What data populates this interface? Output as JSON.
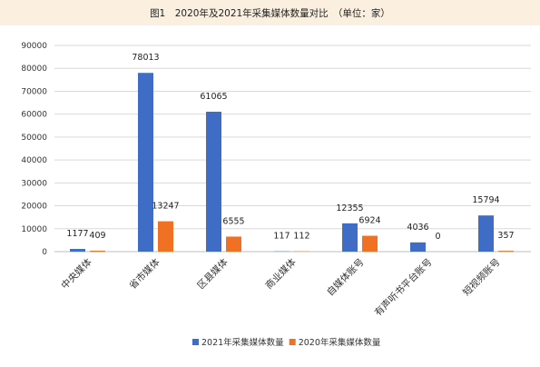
{
  "title": "图1　2020年及2021年采集媒体数量对比　（单位：家）",
  "colors": {
    "series2021": "#3f6cc4",
    "series2020": "#f07024",
    "grid": "#d9d9d9",
    "axis": "#bfbfbf"
  },
  "chart_data": {
    "type": "bar",
    "title": "图1　2020年及2021年采集媒体数量对比　（单位：家）",
    "xlabel": "",
    "ylabel": "",
    "ylim": [
      0,
      90000
    ],
    "yticks": [
      "0",
      "10000",
      "20000",
      "30000",
      "40000",
      "50000",
      "60000",
      "70000",
      "80000",
      "90000"
    ],
    "grid": true,
    "legend": "bottom",
    "categories": [
      "中央媒体",
      "省市媒体",
      "区县媒体",
      "商业媒体",
      "自媒体账号",
      "有声听书平台账号",
      "短视频账号"
    ],
    "series": [
      {
        "name": "2021年采集媒体数量",
        "values": [
          1177,
          78013,
          61065,
          117,
          12355,
          4036,
          15794
        ],
        "labels": [
          "1177",
          "78013",
          "61065",
          "117",
          "12355",
          "4036",
          "15794"
        ]
      },
      {
        "name": "2020年采集媒体数量",
        "values": [
          409,
          13247,
          6555,
          112,
          6924,
          0,
          357
        ],
        "labels": [
          "409",
          "13247",
          "6555",
          "112",
          "6924",
          "0",
          "357"
        ]
      }
    ]
  }
}
